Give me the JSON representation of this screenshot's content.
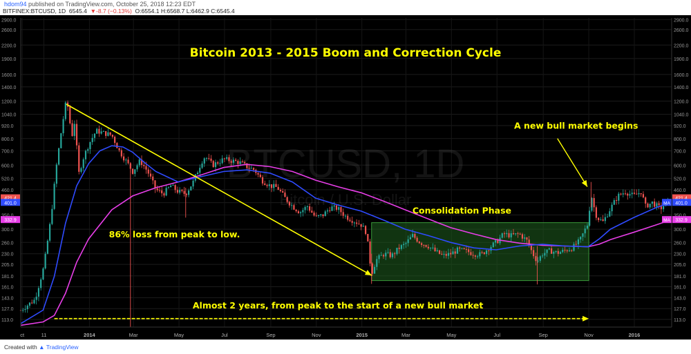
{
  "header": {
    "author": "hdom94",
    "published": "published on TradingView.com, October 25, 2018 12:23 EDT",
    "symbol": "BITFINEX:BTCUSD, 1D",
    "last": "6545.4",
    "change": "▼-8.7 (−0.13%)",
    "ohlc": "O:6554.1 H:6568.7 L:6462.9 C:6545.4"
  },
  "footer": {
    "created_with": "Created with",
    "brand": "TradingView"
  },
  "colors": {
    "background": "#000000",
    "up": "#26a69a",
    "down": "#ef5350",
    "ma_fast": "#2f4bff",
    "ma_slow": "#e83ee8",
    "annotation": "#ffff00",
    "box": "#1f5f1f"
  },
  "chart_data": {
    "type": "candlestick",
    "title": "Bitcoin 2013 - 2015 Boom and Correction Cycle",
    "watermark": "BTCUSD, 1D",
    "watermark_sub": "Bitcoin / U.S. Dollar",
    "y_scale": "log",
    "ylim": [
      104,
      2950
    ],
    "y_ticks": [
      "2900.0",
      "2600.0",
      "2200.0",
      "1900.0",
      "1600.0",
      "1400.0",
      "1200.0",
      "1040.0",
      "920.0",
      "800.0",
      "700.0",
      "600.0",
      "520.0",
      "460.0",
      "400.0",
      "350.0",
      "300.0",
      "260.0",
      "230.0",
      "205.0",
      "181.0",
      "161.0",
      "143.0",
      "127.0",
      "113.0"
    ],
    "x_ticks": [
      "ct",
      "11",
      "2014",
      "Mar",
      "May",
      "Jul",
      "Sep",
      "Nov",
      "2015",
      "Mar",
      "May",
      "Jul",
      "Sep",
      "Nov",
      "2016"
    ],
    "x_range": [
      "2013-10-01",
      "2016-02-20"
    ],
    "price_tags": [
      {
        "text": "421.4",
        "value": 421.4,
        "color": "#ef5350"
      },
      {
        "text": "401.0",
        "value": 401.0,
        "color": "#2f4bff"
      },
      {
        "text": "332.9",
        "value": 332.9,
        "color": "#e83ee8"
      }
    ],
    "ma_labels": {
      "fast": "MA",
      "slow": "MA"
    },
    "price_path": [
      [
        "2013-10-01",
        125
      ],
      [
        "2013-10-20",
        140
      ],
      [
        "2013-11-01",
        200
      ],
      [
        "2013-11-10",
        330
      ],
      [
        "2013-11-18",
        600
      ],
      [
        "2013-11-25",
        900
      ],
      [
        "2013-11-30",
        1150
      ],
      [
        "2013-12-04",
        1120
      ],
      [
        "2013-12-08",
        800
      ],
      [
        "2013-12-12",
        950
      ],
      [
        "2013-12-18",
        550
      ],
      [
        "2013-12-24",
        650
      ],
      [
        "2013-12-31",
        750
      ],
      [
        "2014-01-10",
        870
      ],
      [
        "2014-01-20",
        850
      ],
      [
        "2014-01-31",
        830
      ],
      [
        "2014-02-10",
        700
      ],
      [
        "2014-02-20",
        620
      ],
      [
        "2014-02-28",
        560
      ],
      [
        "2014-03-10",
        630
      ],
      [
        "2014-03-20",
        560
      ],
      [
        "2014-03-31",
        460
      ],
      [
        "2014-04-10",
        440
      ],
      [
        "2014-04-20",
        480
      ],
      [
        "2014-04-30",
        450
      ],
      [
        "2014-05-10",
        440
      ],
      [
        "2014-05-20",
        500
      ],
      [
        "2014-05-31",
        620
      ],
      [
        "2014-06-05",
        660
      ],
      [
        "2014-06-15",
        600
      ],
      [
        "2014-06-30",
        640
      ],
      [
        "2014-07-10",
        630
      ],
      [
        "2014-07-20",
        620
      ],
      [
        "2014-07-31",
        590
      ],
      [
        "2014-08-10",
        570
      ],
      [
        "2014-08-20",
        510
      ],
      [
        "2014-08-31",
        480
      ],
      [
        "2014-09-10",
        470
      ],
      [
        "2014-09-20",
        420
      ],
      [
        "2014-09-30",
        385
      ],
      [
        "2014-10-10",
        360
      ],
      [
        "2014-10-20",
        385
      ],
      [
        "2014-10-31",
        340
      ],
      [
        "2014-11-10",
        350
      ],
      [
        "2014-11-20",
        380
      ],
      [
        "2014-11-30",
        375
      ],
      [
        "2014-12-10",
        345
      ],
      [
        "2014-12-20",
        330
      ],
      [
        "2014-12-31",
        315
      ],
      [
        "2015-01-07",
        290
      ],
      [
        "2015-01-14",
        185
      ],
      [
        "2015-01-20",
        215
      ],
      [
        "2015-01-31",
        230
      ],
      [
        "2015-02-10",
        225
      ],
      [
        "2015-02-20",
        245
      ],
      [
        "2015-02-28",
        255
      ],
      [
        "2015-03-10",
        280
      ],
      [
        "2015-03-20",
        260
      ],
      [
        "2015-03-31",
        250
      ],
      [
        "2015-04-10",
        235
      ],
      [
        "2015-04-20",
        225
      ],
      [
        "2015-04-30",
        230
      ],
      [
        "2015-05-10",
        240
      ],
      [
        "2015-05-20",
        237
      ],
      [
        "2015-05-31",
        230
      ],
      [
        "2015-06-10",
        228
      ],
      [
        "2015-06-20",
        245
      ],
      [
        "2015-06-30",
        260
      ],
      [
        "2015-07-10",
        285
      ],
      [
        "2015-07-20",
        280
      ],
      [
        "2015-07-31",
        285
      ],
      [
        "2015-08-10",
        265
      ],
      [
        "2015-08-18",
        230
      ],
      [
        "2015-08-24",
        212
      ],
      [
        "2015-08-31",
        230
      ],
      [
        "2015-09-10",
        238
      ],
      [
        "2015-09-20",
        232
      ],
      [
        "2015-09-30",
        238
      ],
      [
        "2015-10-10",
        245
      ],
      [
        "2015-10-20",
        265
      ],
      [
        "2015-10-31",
        320
      ],
      [
        "2015-11-04",
        440
      ],
      [
        "2015-11-08",
        380
      ],
      [
        "2015-11-12",
        340
      ],
      [
        "2015-11-20",
        325
      ],
      [
        "2015-11-30",
        375
      ],
      [
        "2015-12-10",
        430
      ],
      [
        "2015-12-20",
        450
      ],
      [
        "2015-12-31",
        430
      ],
      [
        "2016-01-10",
        450
      ],
      [
        "2016-01-16",
        385
      ],
      [
        "2016-01-25",
        400
      ],
      [
        "2016-02-05",
        375
      ],
      [
        "2016-02-20",
        421.4
      ]
    ],
    "ma_fast_path": [
      [
        "2013-10-01",
        108
      ],
      [
        "2013-10-31",
        125
      ],
      [
        "2013-11-15",
        180
      ],
      [
        "2013-11-30",
        320
      ],
      [
        "2013-12-15",
        480
      ],
      [
        "2013-12-31",
        610
      ],
      [
        "2014-01-15",
        700
      ],
      [
        "2014-01-31",
        740
      ],
      [
        "2014-02-15",
        730
      ],
      [
        "2014-02-28",
        690
      ],
      [
        "2014-03-15",
        620
      ],
      [
        "2014-03-31",
        560
      ],
      [
        "2014-04-30",
        500
      ],
      [
        "2014-05-31",
        530
      ],
      [
        "2014-06-30",
        560
      ],
      [
        "2014-07-31",
        570
      ],
      [
        "2014-08-31",
        550
      ],
      [
        "2014-09-30",
        500
      ],
      [
        "2014-10-31",
        420
      ],
      [
        "2014-11-30",
        390
      ],
      [
        "2014-12-31",
        365
      ],
      [
        "2015-01-31",
        330
      ],
      [
        "2015-02-28",
        300
      ],
      [
        "2015-03-31",
        280
      ],
      [
        "2015-04-30",
        260
      ],
      [
        "2015-05-31",
        245
      ],
      [
        "2015-06-30",
        240
      ],
      [
        "2015-07-31",
        250
      ],
      [
        "2015-08-31",
        255
      ],
      [
        "2015-09-30",
        250
      ],
      [
        "2015-10-31",
        248
      ],
      [
        "2015-11-15",
        270
      ],
      [
        "2015-11-30",
        300
      ],
      [
        "2015-12-31",
        340
      ],
      [
        "2016-01-31",
        380
      ],
      [
        "2016-02-20",
        401
      ]
    ],
    "ma_slow_path": [
      [
        "2013-10-01",
        106
      ],
      [
        "2013-10-31",
        110
      ],
      [
        "2013-11-15",
        118
      ],
      [
        "2013-11-30",
        150
      ],
      [
        "2013-12-15",
        210
      ],
      [
        "2013-12-31",
        270
      ],
      [
        "2014-01-31",
        370
      ],
      [
        "2014-02-28",
        430
      ],
      [
        "2014-03-31",
        470
      ],
      [
        "2014-04-30",
        500
      ],
      [
        "2014-05-31",
        540
      ],
      [
        "2014-06-30",
        585
      ],
      [
        "2014-07-31",
        605
      ],
      [
        "2014-08-31",
        590
      ],
      [
        "2014-09-30",
        560
      ],
      [
        "2014-10-31",
        510
      ],
      [
        "2014-11-30",
        475
      ],
      [
        "2014-12-31",
        445
      ],
      [
        "2015-01-31",
        405
      ],
      [
        "2015-02-28",
        370
      ],
      [
        "2015-03-31",
        335
      ],
      [
        "2015-04-30",
        305
      ],
      [
        "2015-05-31",
        285
      ],
      [
        "2015-06-30",
        268
      ],
      [
        "2015-07-31",
        258
      ],
      [
        "2015-08-31",
        252
      ],
      [
        "2015-09-30",
        250
      ],
      [
        "2015-10-31",
        248
      ],
      [
        "2015-11-15",
        255
      ],
      [
        "2015-11-30",
        268
      ],
      [
        "2015-12-31",
        290
      ],
      [
        "2016-01-31",
        315
      ],
      [
        "2016-02-20",
        332.9
      ]
    ],
    "annotations": [
      {
        "id": "loss",
        "text": "86% loss from peak to low.",
        "x": "2014-04-25",
        "y": 275
      },
      {
        "id": "consolidation",
        "text": "Consolidation Phase",
        "x": "2015-05-15",
        "y": 355
      },
      {
        "id": "bull",
        "text": "A new bull market begins",
        "x": "2015-10-15",
        "y": 890
      },
      {
        "id": "duration",
        "text": "Almost 2 years, from peak to the start of a new bull market",
        "x": "2014-11-30",
        "y": 127
      }
    ],
    "trend_line": {
      "from": [
        "2013-12-01",
        1160
      ],
      "to": [
        "2015-01-14",
        182
      ]
    },
    "duration_arrow": {
      "from": [
        "2013-11-15",
        114
      ],
      "to": [
        "2015-11-01",
        114
      ]
    },
    "bull_arrow": {
      "from": [
        "2015-09-20",
        800
      ],
      "to": [
        "2015-10-30",
        475
      ]
    },
    "consolidation_box": {
      "x0": "2015-01-14",
      "x1": "2015-11-01",
      "y0": 172,
      "y1": 322
    }
  }
}
